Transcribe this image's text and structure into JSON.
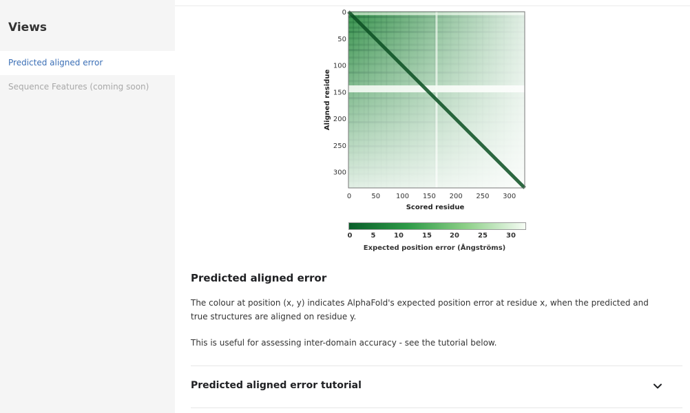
{
  "sidebar": {
    "title": "Views",
    "items": [
      {
        "label": "Predicted aligned error",
        "active": true
      },
      {
        "label": "Sequence Features (coming soon)",
        "disabled": true
      }
    ]
  },
  "pae_plot": {
    "y_axis_label": "Aligned residue",
    "x_axis_label": "Scored residue",
    "y_ticks": [
      "0",
      "50",
      "100",
      "150",
      "200",
      "250",
      "300"
    ],
    "x_ticks": [
      "0",
      "50",
      "100",
      "150",
      "200",
      "250",
      "300"
    ],
    "residue_count": 330
  },
  "colorbar": {
    "ticks": [
      "0",
      "5",
      "10",
      "15",
      "20",
      "25",
      "30"
    ],
    "label": "Expected position error (Ångströms)",
    "colors": {
      "low": "#0a5e2a",
      "mid": "#2d9a47",
      "high": "#f6fcf4"
    }
  },
  "content": {
    "heading": "Predicted aligned error",
    "paragraph1": "The colour at position (x, y) indicates AlphaFold's expected position error at residue x, when the predicted and true structures are aligned on residue y.",
    "paragraph2": "This is useful for assessing inter-domain accuracy - see the tutorial below."
  },
  "tutorial": {
    "title": "Predicted aligned error tutorial",
    "icon": "chevron-down-icon"
  }
}
